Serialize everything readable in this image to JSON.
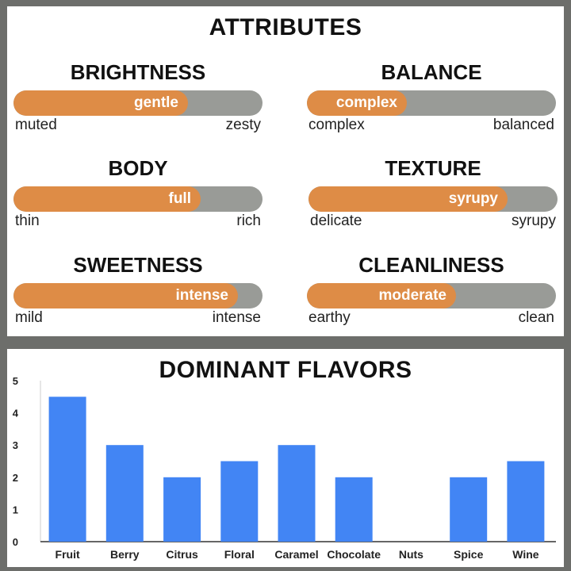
{
  "attributes_title": "ATTRIBUTES",
  "attributes": [
    {
      "name": "BRIGHTNESS",
      "level": 0.7,
      "value_label": "gentle",
      "low": "muted",
      "high": "zesty"
    },
    {
      "name": "BALANCE",
      "level": 0.4,
      "value_label": "complex",
      "low": "complex",
      "high": "balanced"
    },
    {
      "name": "BODY",
      "level": 0.75,
      "value_label": "full",
      "low": "thin",
      "high": "rich"
    },
    {
      "name": "TEXTURE",
      "level": 0.8,
      "value_label": "syrupy",
      "low": "delicate",
      "high": "syrupy"
    },
    {
      "name": "SWEETNESS",
      "level": 0.9,
      "value_label": "intense",
      "low": "mild",
      "high": "intense"
    },
    {
      "name": "CLEANLINESS",
      "level": 0.6,
      "value_label": "moderate",
      "low": "earthy",
      "high": "clean"
    }
  ],
  "colors": {
    "fill": "#de8c46",
    "track": "#999b97",
    "bar": "#4285f4",
    "frame": "#6d6e6b"
  },
  "chart_data": {
    "type": "bar",
    "title": "DOMINANT FLAVORS",
    "categories": [
      "Fruit",
      "Berry",
      "Citrus",
      "Floral",
      "Caramel",
      "Chocolate",
      "Nuts",
      "Spice",
      "Wine"
    ],
    "values": [
      4.5,
      3,
      2,
      2.5,
      3,
      2,
      0,
      2,
      2.5
    ],
    "ylim": [
      0,
      5
    ],
    "yticks": [
      "0",
      "1",
      "2",
      "3",
      "4",
      "5"
    ],
    "grid": false,
    "xlabel": "",
    "ylabel": ""
  }
}
